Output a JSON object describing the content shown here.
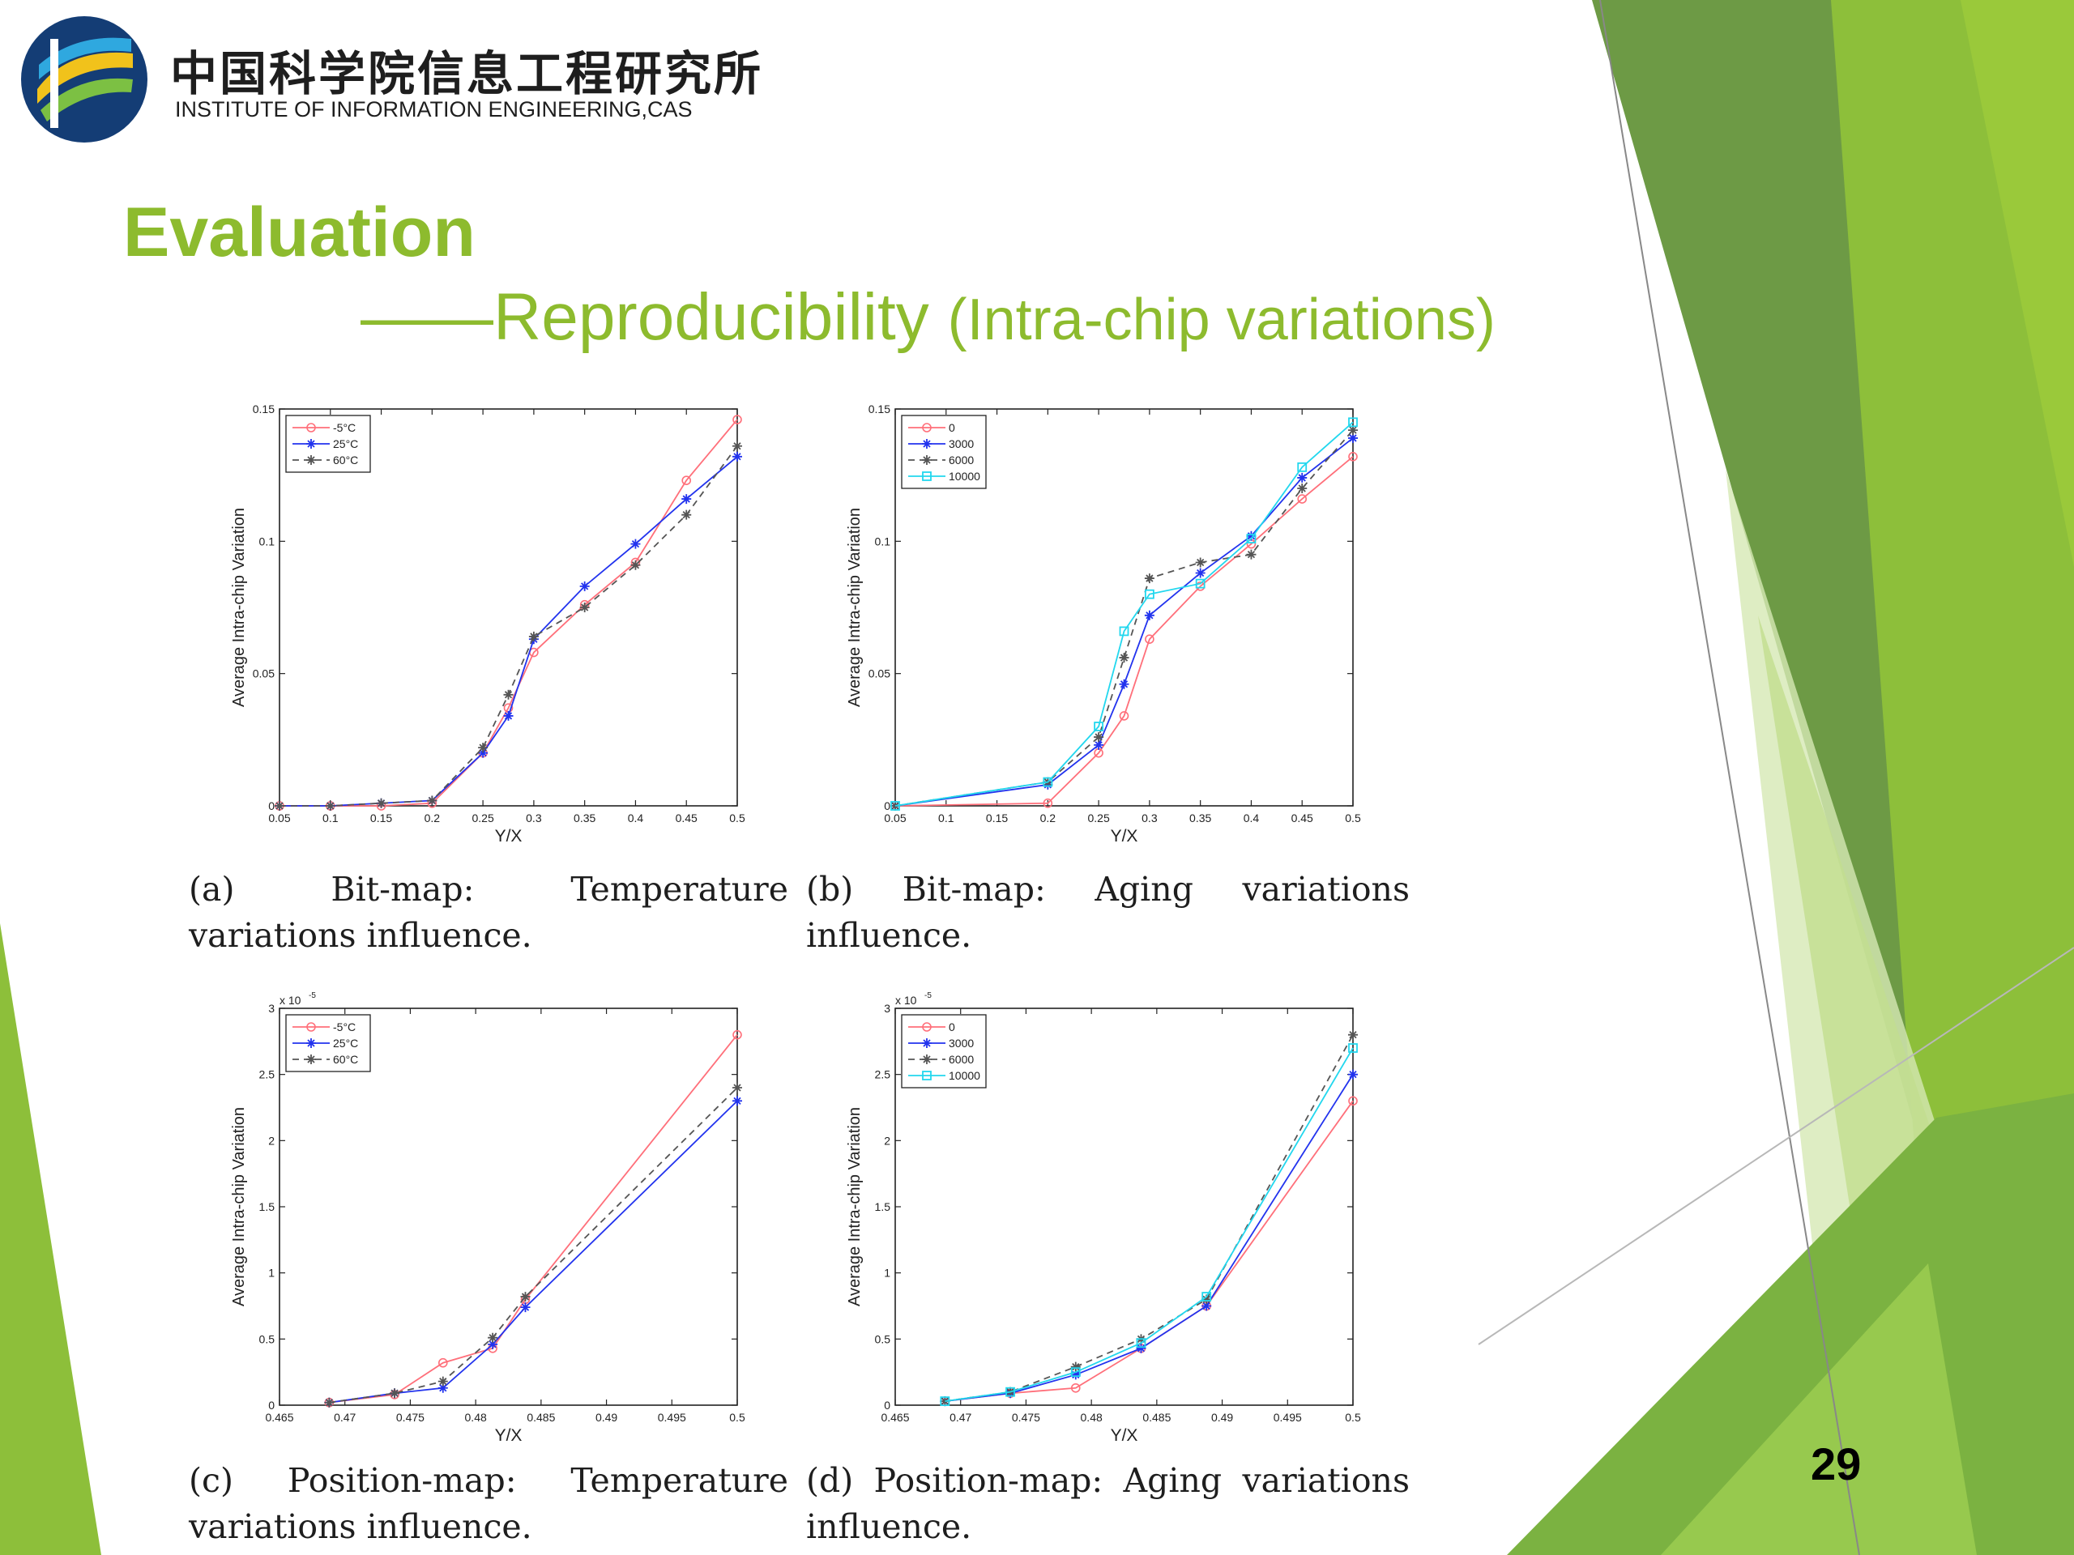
{
  "header": {
    "institute_cn": "中国科学院信息工程研究所",
    "institute_en": "INSTITUTE OF INFORMATION ENGINEERING,CAS"
  },
  "slide": {
    "title": "Evaluation",
    "subtitle_main": "——Reproducibility",
    "subtitle_paren": "(Intra-chip variations)",
    "page_number": "29"
  },
  "captions": {
    "a": "(a) Bit-map: Temperature variations influence.",
    "b": "(b) Bit-map: Aging variations influence.",
    "c": "(c) Position-map: Temperature variations influence.",
    "d": "(d) Position-map: Aging variations influence."
  },
  "chart_data": [
    {
      "type": "line",
      "xlabel": "Y/X",
      "ylabel": "Average Intra-chip Variation",
      "xlim": [
        0.05,
        0.5
      ],
      "ylim": [
        0,
        0.15
      ],
      "xticks": [
        "0.05",
        "0.1",
        "0.15",
        "0.2",
        "0.25",
        "0.3",
        "0.35",
        "0.4",
        "0.45",
        "0.5"
      ],
      "yticks": [
        "0",
        "0.05",
        "0.1",
        "0.15"
      ],
      "legend_position": "top-left",
      "series": [
        {
          "name": "-5°C",
          "color": "#ff6f7a",
          "dash": "",
          "marker": "circle",
          "x": [
            0.05,
            0.1,
            0.15,
            0.2,
            0.25,
            0.275,
            0.3,
            0.35,
            0.4,
            0.45,
            0.5
          ],
          "y": [
            0,
            0,
            0,
            0.001,
            0.02,
            0.037,
            0.058,
            0.076,
            0.092,
            0.123,
            0.146
          ]
        },
        {
          "name": "25°C",
          "color": "#2233ee",
          "dash": "",
          "marker": "star",
          "x": [
            0.05,
            0.1,
            0.15,
            0.2,
            0.25,
            0.275,
            0.3,
            0.35,
            0.4,
            0.45,
            0.5
          ],
          "y": [
            0,
            0,
            0.001,
            0.002,
            0.02,
            0.034,
            0.063,
            0.083,
            0.099,
            0.116,
            0.132
          ]
        },
        {
          "name": "60°C",
          "color": "#555555",
          "dash": "8,6",
          "marker": "star",
          "x": [
            0.05,
            0.1,
            0.15,
            0.2,
            0.25,
            0.275,
            0.3,
            0.35,
            0.4,
            0.45,
            0.5
          ],
          "y": [
            0,
            0,
            0.001,
            0.002,
            0.022,
            0.042,
            0.064,
            0.075,
            0.091,
            0.11,
            0.136
          ]
        }
      ]
    },
    {
      "type": "line",
      "xlabel": "Y/X",
      "ylabel": "Average Intra-chip Variation",
      "xlim": [
        0.05,
        0.5
      ],
      "ylim": [
        0,
        0.15
      ],
      "xticks": [
        "0.05",
        "0.1",
        "0.15",
        "0.2",
        "0.25",
        "0.3",
        "0.35",
        "0.4",
        "0.45",
        "0.5"
      ],
      "yticks": [
        "0",
        "0.05",
        "0.1",
        "0.15"
      ],
      "legend_position": "top-left",
      "series": [
        {
          "name": "0",
          "color": "#ff6f7a",
          "dash": "",
          "marker": "circle",
          "x": [
            0.05,
            0.2,
            0.25,
            0.275,
            0.3,
            0.35,
            0.4,
            0.45,
            0.5
          ],
          "y": [
            0,
            0.001,
            0.02,
            0.034,
            0.063,
            0.083,
            0.099,
            0.116,
            0.132
          ]
        },
        {
          "name": "3000",
          "color": "#2233ee",
          "dash": "",
          "marker": "star",
          "x": [
            0.05,
            0.2,
            0.25,
            0.275,
            0.3,
            0.35,
            0.4,
            0.45,
            0.5
          ],
          "y": [
            0,
            0.008,
            0.023,
            0.046,
            0.072,
            0.088,
            0.102,
            0.124,
            0.139
          ]
        },
        {
          "name": "6000",
          "color": "#555555",
          "dash": "8,6",
          "marker": "star",
          "x": [
            0.05,
            0.2,
            0.25,
            0.275,
            0.3,
            0.35,
            0.4,
            0.45,
            0.5
          ],
          "y": [
            0,
            0.009,
            0.026,
            0.056,
            0.086,
            0.092,
            0.095,
            0.12,
            0.142
          ]
        },
        {
          "name": "10000",
          "color": "#22d7ee",
          "dash": "",
          "marker": "square",
          "x": [
            0.05,
            0.2,
            0.25,
            0.275,
            0.3,
            0.35,
            0.4,
            0.45,
            0.5
          ],
          "y": [
            0,
            0.009,
            0.03,
            0.066,
            0.08,
            0.084,
            0.101,
            0.128,
            0.145
          ]
        }
      ]
    },
    {
      "type": "line",
      "xlabel": "Y/X",
      "ylabel": "Average Intra-chip Variation",
      "multiplier": "x 10",
      "exponent": "-5",
      "xlim": [
        0.465,
        0.5
      ],
      "ylim": [
        0,
        3
      ],
      "xticks": [
        "0.465",
        "0.47",
        "0.475",
        "0.48",
        "0.485",
        "0.49",
        "0.495",
        "0.5"
      ],
      "yticks": [
        "0",
        "0.5",
        "1",
        "1.5",
        "2",
        "2.5",
        "3"
      ],
      "legend_position": "top-left",
      "series": [
        {
          "name": "-5°C",
          "color": "#ff6f7a",
          "dash": "",
          "marker": "circle",
          "x": [
            0.4688,
            0.4738,
            0.4775,
            0.4813,
            0.4838,
            0.5
          ],
          "y": [
            0.02,
            0.08,
            0.32,
            0.43,
            0.8,
            2.8
          ]
        },
        {
          "name": "25°C",
          "color": "#2233ee",
          "dash": "",
          "marker": "star",
          "x": [
            0.4688,
            0.4738,
            0.4775,
            0.4813,
            0.4838,
            0.5
          ],
          "y": [
            0.02,
            0.09,
            0.13,
            0.46,
            0.74,
            2.3
          ]
        },
        {
          "name": "60°C",
          "color": "#555555",
          "dash": "8,6",
          "marker": "star",
          "x": [
            0.4688,
            0.4738,
            0.4775,
            0.4813,
            0.4838,
            0.5
          ],
          "y": [
            0.02,
            0.09,
            0.18,
            0.51,
            0.82,
            2.4
          ]
        }
      ]
    },
    {
      "type": "line",
      "xlabel": "Y/X",
      "ylabel": "Average Intra-chip Variation",
      "multiplier": "x 10",
      "exponent": "-5",
      "xlim": [
        0.465,
        0.5
      ],
      "ylim": [
        0,
        3
      ],
      "xticks": [
        "0.465",
        "0.47",
        "0.475",
        "0.48",
        "0.485",
        "0.49",
        "0.495",
        "0.5"
      ],
      "yticks": [
        "0",
        "0.5",
        "1",
        "1.5",
        "2",
        "2.5",
        "3"
      ],
      "legend_position": "top-left",
      "series": [
        {
          "name": "0",
          "color": "#ff6f7a",
          "dash": "",
          "marker": "circle",
          "x": [
            0.4688,
            0.4738,
            0.4788,
            0.4838,
            0.4888,
            0.5
          ],
          "y": [
            0.03,
            0.09,
            0.13,
            0.43,
            0.75,
            2.3
          ]
        },
        {
          "name": "3000",
          "color": "#2233ee",
          "dash": "",
          "marker": "star",
          "x": [
            0.4688,
            0.4738,
            0.4788,
            0.4838,
            0.4888,
            0.5
          ],
          "y": [
            0.03,
            0.09,
            0.23,
            0.43,
            0.75,
            2.5
          ]
        },
        {
          "name": "6000",
          "color": "#555555",
          "dash": "8,6",
          "marker": "star",
          "x": [
            0.4688,
            0.4738,
            0.4788,
            0.4838,
            0.4888,
            0.5
          ],
          "y": [
            0.03,
            0.1,
            0.29,
            0.5,
            0.8,
            2.8
          ]
        },
        {
          "name": "10000",
          "color": "#22d7ee",
          "dash": "",
          "marker": "square",
          "x": [
            0.4688,
            0.4738,
            0.4788,
            0.4838,
            0.4888,
            0.5
          ],
          "y": [
            0.03,
            0.1,
            0.25,
            0.47,
            0.82,
            2.7
          ]
        }
      ]
    }
  ]
}
